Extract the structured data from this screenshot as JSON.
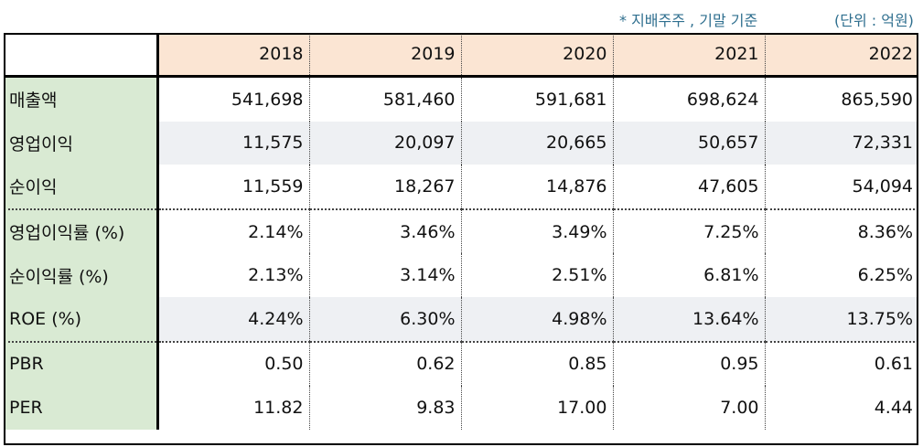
{
  "notes": {
    "basis": "* 지배주주 , 기말 기준",
    "unit": "(단위 : 억원)"
  },
  "table": {
    "years": [
      "2018",
      "2019",
      "2020",
      "2021",
      "2022"
    ],
    "rows": [
      {
        "label": "매출액",
        "values": [
          "541,698",
          "581,460",
          "591,681",
          "698,624",
          "865,590"
        ]
      },
      {
        "label": "영업이익",
        "values": [
          "11,575",
          "20,097",
          "20,665",
          "50,657",
          "72,331"
        ]
      },
      {
        "label": "순이익",
        "values": [
          "11,559",
          "18,267",
          "14,876",
          "47,605",
          "54,094"
        ]
      },
      {
        "label": "영업이익률 (%)",
        "values": [
          "2.14%",
          "3.46%",
          "3.49%",
          "7.25%",
          "8.36%"
        ]
      },
      {
        "label": "순이익률 (%)",
        "values": [
          "2.13%",
          "3.14%",
          "2.51%",
          "6.81%",
          "6.25%"
        ]
      },
      {
        "label": "ROE (%)",
        "values": [
          "4.24%",
          "6.30%",
          "4.98%",
          "13.64%",
          "13.75%"
        ]
      },
      {
        "label": "PBR",
        "values": [
          "0.50",
          "0.62",
          "0.85",
          "0.95",
          "0.61"
        ]
      },
      {
        "label": "PER",
        "values": [
          "11.82",
          "9.83",
          "17.00",
          "7.00",
          "4.44"
        ]
      }
    ]
  },
  "colors": {
    "header_bg": "#fbe5d3",
    "label_bg": "#d9ead3",
    "alt_row_bg": "#eef0f3",
    "note_text": "#2f6f8f"
  }
}
